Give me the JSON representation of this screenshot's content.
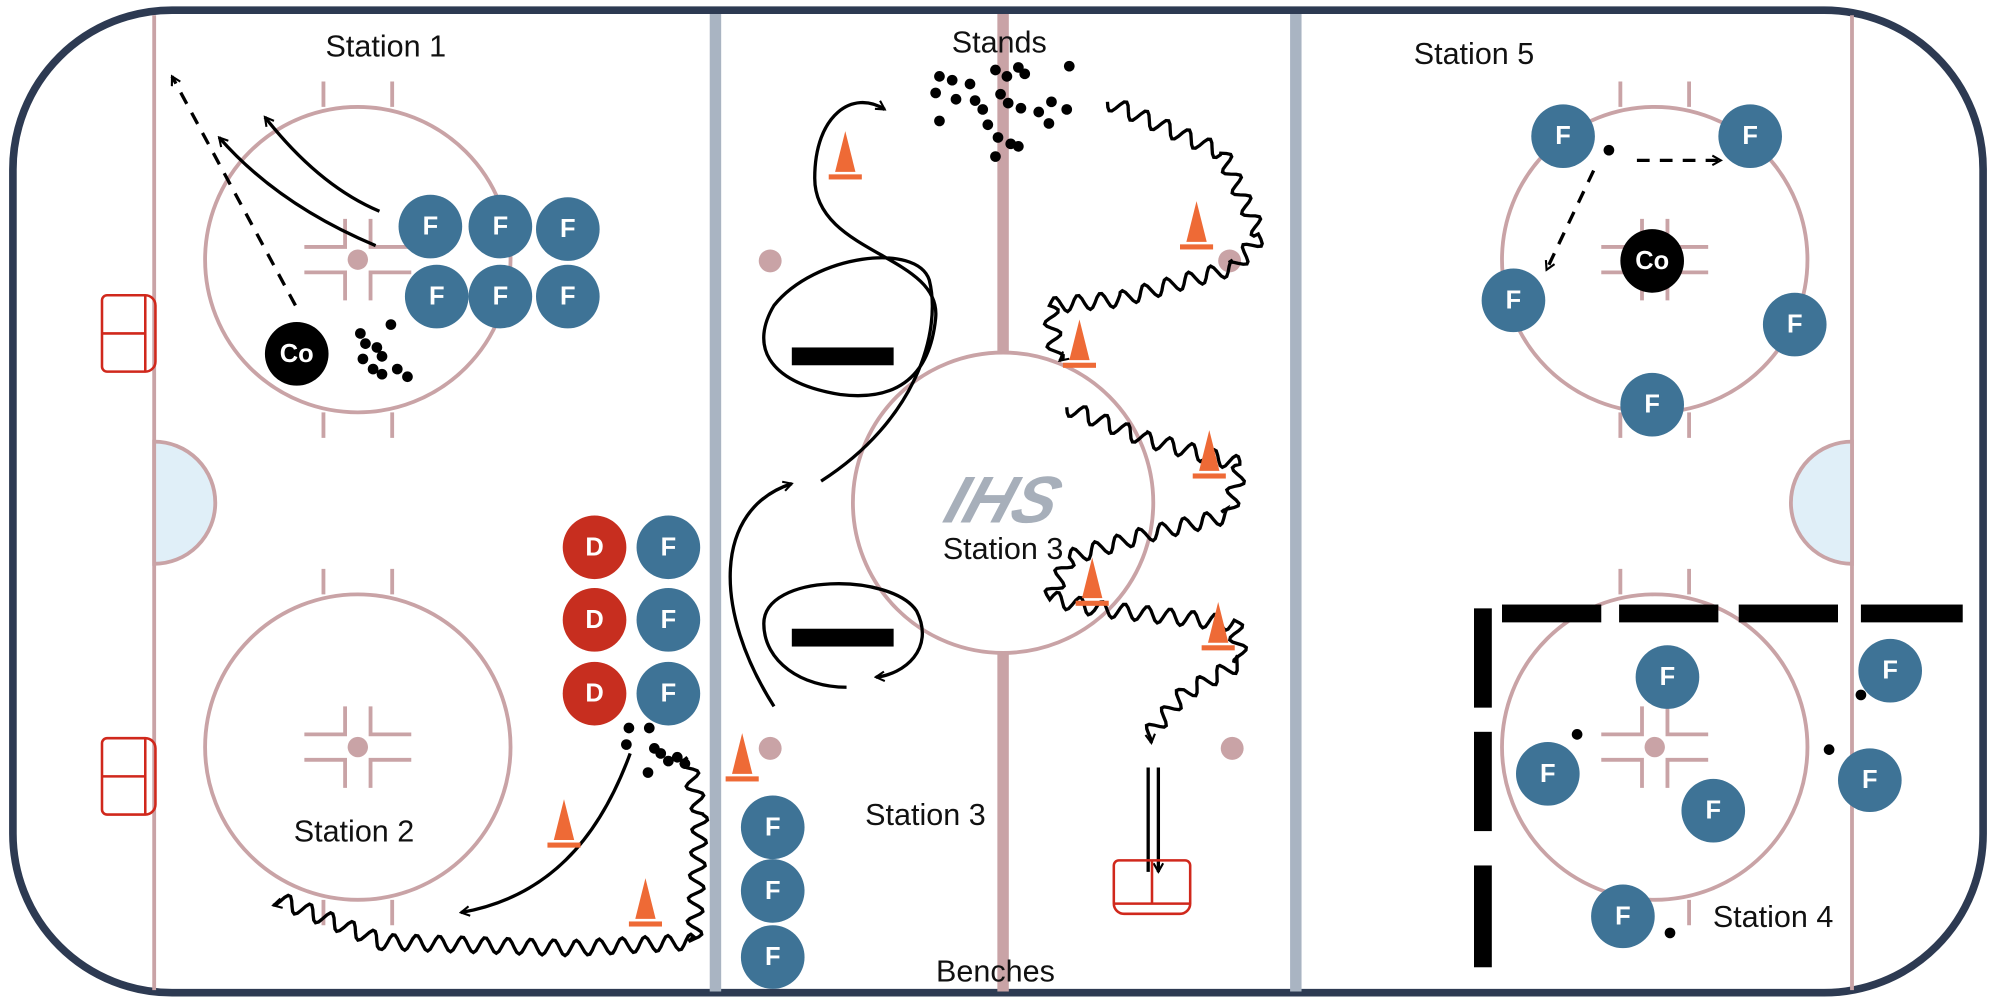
{
  "stations": [
    "Station 1",
    "Station 2",
    "Station 3",
    "Station 3",
    "Station 4",
    "Station 5"
  ],
  "landmarks": {
    "stands": "Stands",
    "benches": "Benches"
  },
  "logo": "IHS",
  "players": [
    "F",
    "F",
    "F",
    "F",
    "F",
    "F",
    "Co",
    "D",
    "D",
    "D",
    "F",
    "F",
    "F",
    "F",
    "F",
    "F",
    "F",
    "F",
    "F",
    "F",
    "F",
    "Co",
    "F",
    "F",
    "F",
    "F",
    "F",
    "F"
  ]
}
